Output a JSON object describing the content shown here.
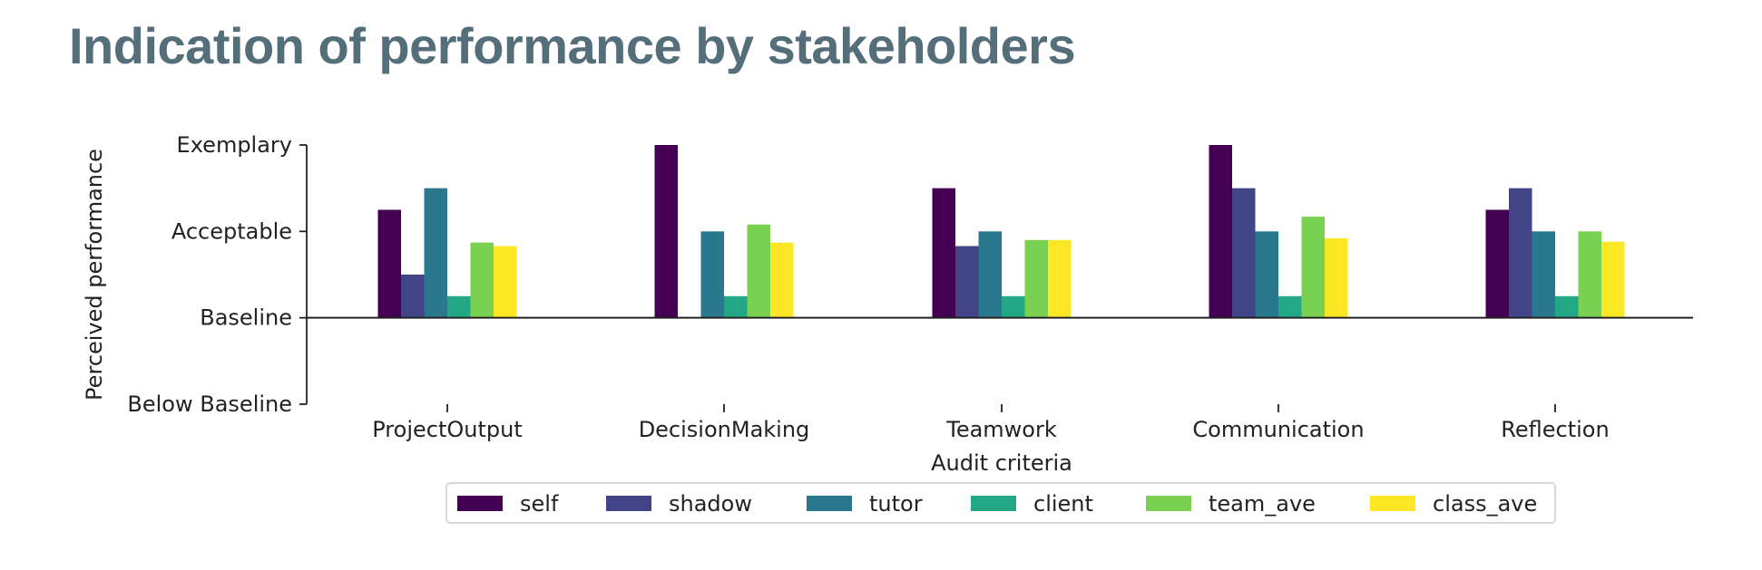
{
  "page": {
    "title": "Indication of performance by stakeholders"
  },
  "chart_data": {
    "type": "bar",
    "title": "",
    "xlabel": "Audit criteria",
    "ylabel": "Perceived performance",
    "ylim": [
      -1,
      2
    ],
    "yticks": [
      {
        "value": -1,
        "label": "Below Baseline"
      },
      {
        "value": 0,
        "label": "Baseline"
      },
      {
        "value": 1,
        "label": "Acceptable"
      },
      {
        "value": 2,
        "label": "Exemplary"
      }
    ],
    "categories": [
      "ProjectOutput",
      "DecisionMaking",
      "Teamwork",
      "Communication",
      "Reflection"
    ],
    "series": [
      {
        "name": "self",
        "color": "#440154",
        "values": [
          1.25,
          2.0,
          1.5,
          2.0,
          1.25
        ]
      },
      {
        "name": "shadow",
        "color": "#414487",
        "values": [
          0.5,
          0.0,
          0.83,
          1.5,
          1.5
        ]
      },
      {
        "name": "tutor",
        "color": "#2a788e",
        "values": [
          1.5,
          1.0,
          1.0,
          1.0,
          1.0
        ]
      },
      {
        "name": "client",
        "color": "#22a884",
        "values": [
          0.25,
          0.25,
          0.25,
          0.25,
          0.25
        ]
      },
      {
        "name": "team_ave",
        "color": "#7ad151",
        "values": [
          0.87,
          1.08,
          0.9,
          1.17,
          1.0
        ]
      },
      {
        "name": "class_ave",
        "color": "#fde725",
        "values": [
          0.83,
          0.87,
          0.9,
          0.92,
          0.88
        ]
      }
    ],
    "baseline_line": 0,
    "grid": false,
    "legend": {
      "placement": "bottom-center",
      "columns": 6
    }
  }
}
